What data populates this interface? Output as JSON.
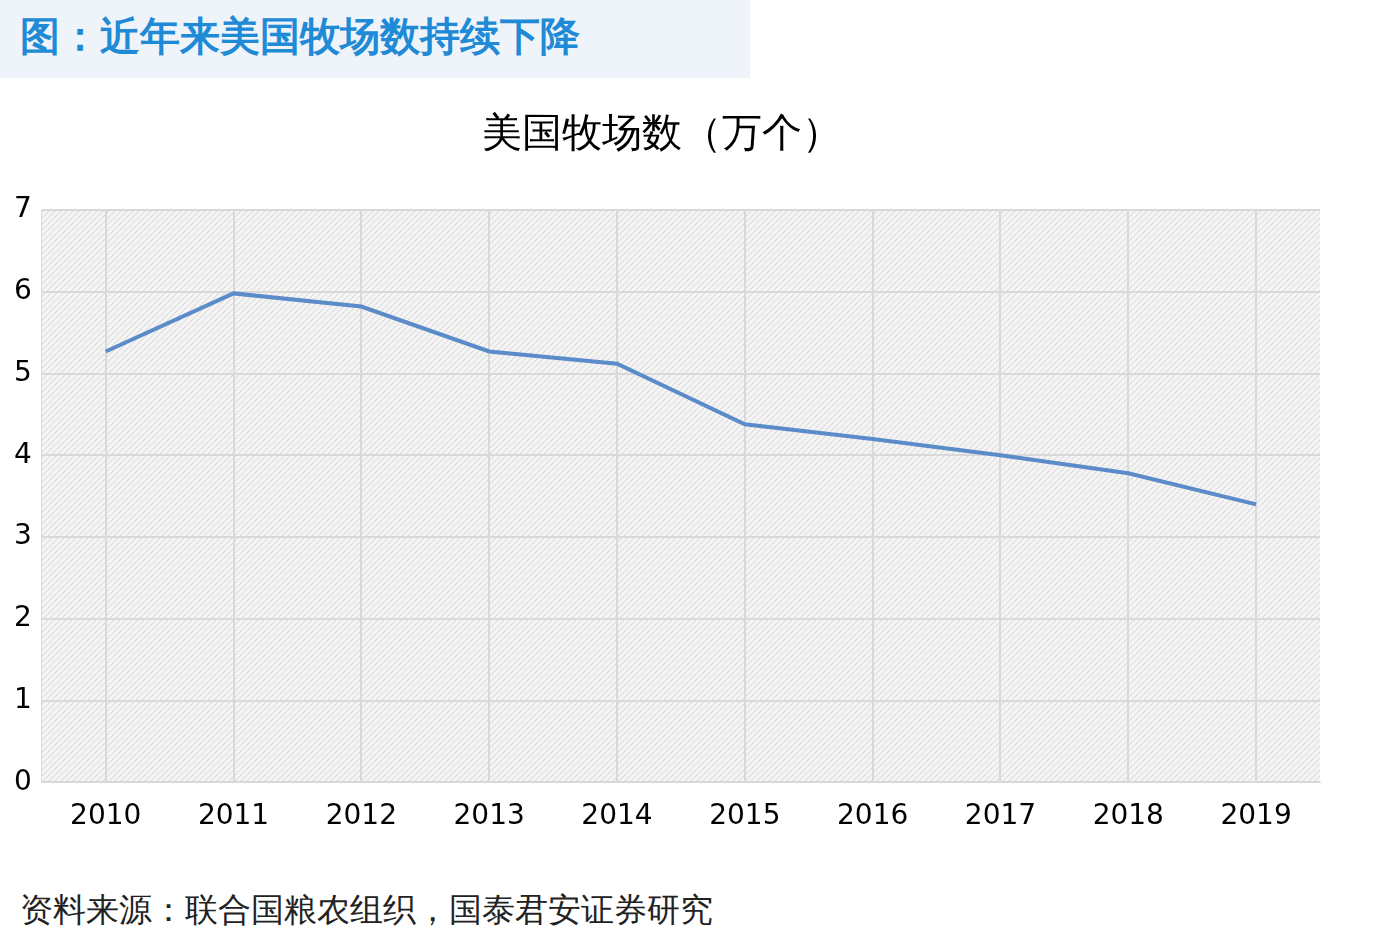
{
  "header": "图：近年来美国牧场数持续下降",
  "source": "资料来源：联合国粮农组织，国泰君安证券研究",
  "chart_data": {
    "type": "line",
    "title": "美国牧场数（万个）",
    "categories": [
      "2010",
      "2011",
      "2012",
      "2013",
      "2014",
      "2015",
      "2016",
      "2017",
      "2018",
      "2019"
    ],
    "values": [
      5.27,
      5.98,
      5.82,
      5.27,
      5.12,
      4.38,
      4.2,
      4.0,
      3.78,
      3.4
    ],
    "color": "#5b8bc9",
    "ylim": [
      0,
      7
    ],
    "yticks": [
      0,
      1,
      2,
      3,
      4,
      5,
      6,
      7
    ],
    "grid": true
  }
}
